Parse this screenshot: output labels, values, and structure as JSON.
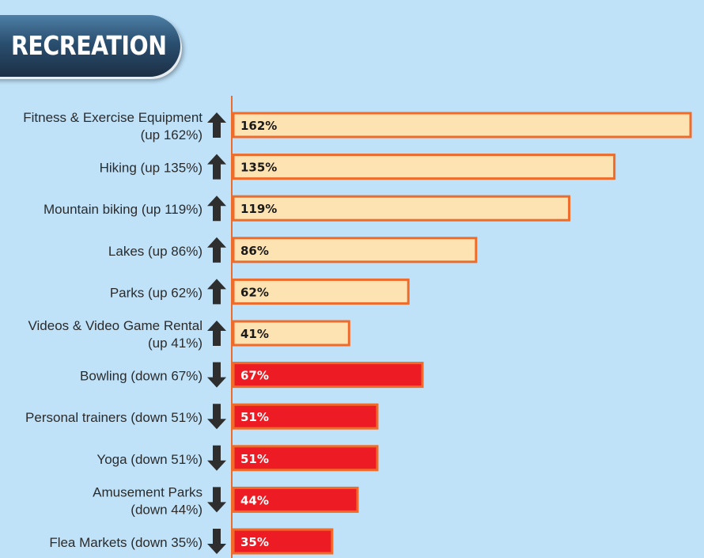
{
  "header": {
    "title": "RECREATION"
  },
  "colors": {
    "up_fill": "#fde2b2",
    "down_fill": "#ed1c24",
    "bar_stroke": "#ee6b2a",
    "axis": "#ee6b2a",
    "up_text": "#1a1a1a",
    "down_text": "#ffffff",
    "arrow": "#2e2e2e"
  },
  "chart_data": {
    "type": "bar",
    "orientation": "horizontal",
    "title": "RECREATION",
    "xlim": [
      0,
      162
    ],
    "grid": false,
    "legend": "none",
    "categories": [
      [
        "Fitness & Exercise Equipment",
        "(up 162%)"
      ],
      [
        "Hiking (up 135%)"
      ],
      [
        "Mountain biking (up 119%)"
      ],
      [
        "Lakes (up 86%)"
      ],
      [
        "Parks (up 62%)"
      ],
      [
        "Videos & Video Game Rental",
        "(up 41%)"
      ],
      [
        "Bowling (down 67%)"
      ],
      [
        "Personal trainers (down 51%)"
      ],
      [
        "Yoga (down 51%)"
      ],
      [
        "Amusement Parks",
        "(down 44%)"
      ],
      [
        "Flea Markets (down 35%)"
      ]
    ],
    "values": [
      162,
      135,
      119,
      86,
      62,
      41,
      67,
      51,
      51,
      44,
      35
    ],
    "value_labels": [
      "162%",
      "135%",
      "119%",
      "86%",
      "62%",
      "41%",
      "67%",
      "51%",
      "51%",
      "44%",
      "35%"
    ],
    "direction": [
      "up",
      "up",
      "up",
      "up",
      "up",
      "up",
      "down",
      "down",
      "down",
      "down",
      "down"
    ],
    "icons": {
      "up": "arrow-up-icon",
      "down": "arrow-down-icon"
    }
  }
}
